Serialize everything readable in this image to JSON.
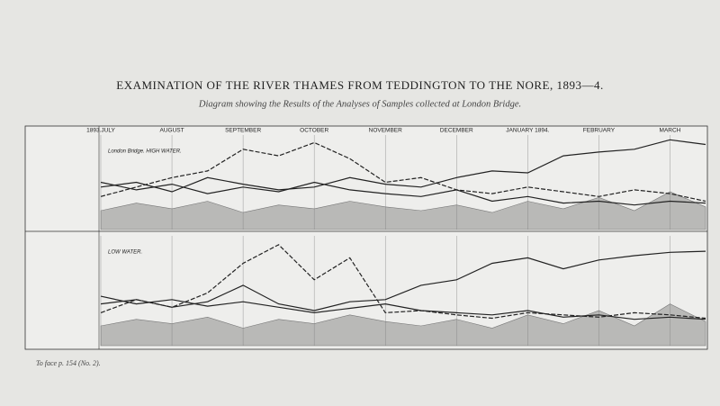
{
  "title": "EXAMINATION OF THE RIVER THAMES FROM TEDDINGTON TO THE NORE, 1893—4.",
  "subtitle": "Diagram showing the Results of the Analyses of Samples collected at London Bridge.",
  "footer": "To face p. 154 (No. 2).",
  "chart_data": [
    {
      "type": "line",
      "title": "London Bridge. HIGH WATER.",
      "xlim": [
        0,
        8.5
      ],
      "ylim": [
        0,
        100
      ],
      "xticks": [
        {
          "value": 0,
          "label": "1893.JULY"
        },
        {
          "value": 1,
          "label": "AUGUST"
        },
        {
          "value": 2,
          "label": "SEPTEMBER"
        },
        {
          "value": 3,
          "label": "OCTOBER"
        },
        {
          "value": 4,
          "label": "NOVEMBER"
        },
        {
          "value": 5,
          "label": "DECEMBER"
        },
        {
          "value": 6,
          "label": "JANUARY 1894."
        },
        {
          "value": 7,
          "label": "FEBRUARY"
        },
        {
          "value": 8,
          "label": "MARCH"
        }
      ],
      "x": [
        0,
        0.5,
        1,
        1.5,
        2,
        2.5,
        3,
        3.5,
        4,
        4.5,
        5,
        5.5,
        6,
        6.5,
        7,
        7.5,
        8,
        8.5
      ],
      "series": [
        {
          "color": "#777",
          "fill": true,
          "values": [
            20,
            28,
            22,
            30,
            18,
            26,
            22,
            30,
            24,
            20,
            26,
            18,
            30,
            22,
            34,
            20,
            40,
            24
          ]
        },
        {
          "color": "#222",
          "dash": true,
          "values": [
            35,
            45,
            55,
            62,
            85,
            78,
            92,
            75,
            50,
            55,
            42,
            38,
            45,
            40,
            35,
            42,
            38,
            30
          ]
        },
        {
          "color": "#222",
          "values": [
            45,
            50,
            40,
            55,
            48,
            42,
            45,
            55,
            48,
            45,
            55,
            62,
            60,
            78,
            82,
            85,
            95,
            90
          ]
        },
        {
          "color": "#222",
          "values": [
            50,
            42,
            48,
            38,
            45,
            40,
            50,
            42,
            38,
            35,
            42,
            30,
            35,
            28,
            30,
            26,
            30,
            28
          ]
        }
      ]
    },
    {
      "type": "line",
      "title": "LOW WATER.",
      "xlim": [
        0,
        8.5
      ],
      "ylim": [
        0,
        100
      ],
      "x": [
        0,
        0.5,
        1,
        1.5,
        2,
        2.5,
        3,
        3.5,
        4,
        4.5,
        5,
        5.5,
        6,
        6.5,
        7,
        7.5,
        8,
        8.5
      ],
      "series": [
        {
          "color": "#777",
          "fill": true,
          "values": [
            18,
            24,
            20,
            26,
            16,
            24,
            20,
            28,
            22,
            18,
            24,
            16,
            28,
            20,
            32,
            18,
            38,
            22
          ]
        },
        {
          "color": "#222",
          "dash": true,
          "values": [
            30,
            42,
            35,
            48,
            75,
            92,
            60,
            80,
            30,
            32,
            28,
            25,
            30,
            28,
            26,
            30,
            28,
            25
          ]
        },
        {
          "color": "#222",
          "values": [
            38,
            42,
            35,
            40,
            55,
            38,
            32,
            40,
            42,
            55,
            60,
            75,
            80,
            70,
            78,
            82,
            85,
            86
          ]
        },
        {
          "color": "#222",
          "values": [
            45,
            38,
            42,
            36,
            40,
            35,
            30,
            34,
            38,
            32,
            30,
            28,
            32,
            26,
            28,
            24,
            26,
            24
          ]
        }
      ]
    }
  ]
}
